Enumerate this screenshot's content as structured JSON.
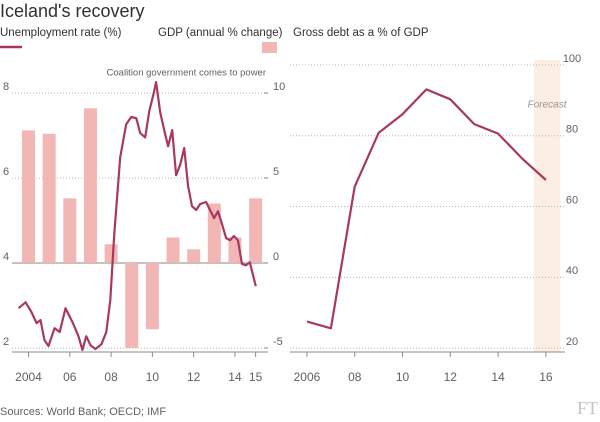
{
  "title": "Iceland's recovery",
  "source": "Sources: World Bank; OECD; IMF",
  "logo": "FT",
  "chart_data": [
    {
      "type": "bar-line",
      "annotation": "Coalition government comes to power",
      "xlim": [
        2003.2,
        2015.6
      ],
      "xticks": [
        2004,
        {
          "value": 2006,
          "label": "06"
        },
        {
          "value": 2008,
          "label": "08"
        },
        {
          "value": 2010,
          "label": "10"
        },
        {
          "value": 2012,
          "label": "12"
        },
        {
          "value": 2014,
          "label": "14"
        },
        {
          "value": 2015,
          "label": "15"
        }
      ],
      "ylim": [
        1.91,
        8.78
      ],
      "yticks": [
        2,
        4,
        6,
        8
      ],
      "y2lim": [
        -5.24,
        11.94
      ],
      "y2ticks": [
        -5,
        0,
        5,
        10
      ],
      "grid": true,
      "series": [
        {
          "name": "Unemployment rate (%)",
          "type": "line",
          "color": "#a8385f",
          "x": [
            2003.52,
            2003.86,
            2004.14,
            2004.39,
            2004.58,
            2004.77,
            2004.97,
            2005.26,
            2005.51,
            2005.79,
            2006.13,
            2006.42,
            2006.61,
            2006.8,
            2007.0,
            2007.24,
            2007.53,
            2007.77,
            2007.96,
            2008.15,
            2008.44,
            2008.73,
            2008.98,
            2009.22,
            2009.41,
            2009.65,
            2009.85,
            2010.04,
            2010.18,
            2010.38,
            2010.57,
            2010.76,
            2010.96,
            2011.15,
            2011.34,
            2011.54,
            2011.73,
            2011.92,
            2012.12,
            2012.31,
            2012.6,
            2012.79,
            2012.99,
            2013.18,
            2013.37,
            2013.57,
            2013.76,
            2013.95,
            2014.14,
            2014.34,
            2014.53,
            2014.72,
            2015.01
          ],
          "values": [
            2.94,
            3.08,
            2.85,
            2.59,
            2.66,
            2.19,
            2.05,
            2.47,
            2.38,
            2.94,
            2.61,
            2.28,
            1.96,
            2.28,
            2.07,
            1.98,
            2.09,
            2.38,
            3.13,
            4.66,
            6.49,
            7.27,
            7.44,
            7.41,
            7.06,
            6.96,
            7.58,
            7.95,
            8.26,
            7.55,
            7.13,
            6.75,
            7.13,
            6.07,
            6.31,
            6.71,
            5.81,
            5.34,
            5.25,
            5.39,
            5.44,
            5.25,
            5.06,
            5.22,
            4.92,
            4.59,
            4.54,
            4.64,
            4.54,
            3.98,
            3.95,
            4.02,
            3.46
          ]
        },
        {
          "name": "GDP (annual % change)",
          "type": "bar",
          "axis": "y2",
          "color": "#f2b7b5",
          "x": [
            2004,
            2005,
            2006,
            2007,
            2008,
            2009,
            2010,
            2011,
            2012,
            2013,
            2014,
            2015
          ],
          "values": [
            7.8,
            7.6,
            3.8,
            9.1,
            1.1,
            -5.0,
            -3.9,
            1.5,
            0.8,
            3.5,
            1.5,
            3.8
          ]
        }
      ]
    },
    {
      "type": "line",
      "title": "Gross debt as a % of GDP",
      "color": "#a8385f",
      "x": [
        2006,
        2007,
        2008,
        2009,
        2010,
        2011,
        2012,
        2013,
        2014,
        2015,
        2016
      ],
      "values": [
        27.5,
        25.6,
        65.6,
        80.8,
        86.1,
        93.1,
        90.3,
        83.3,
        80.6,
        73.6,
        67.5
      ],
      "xlim": [
        2005.29,
        2016.8
      ],
      "xticks": [
        2006,
        {
          "value": 2008,
          "label": "08"
        },
        {
          "value": 2010,
          "label": "10"
        },
        {
          "value": 2012,
          "label": "12"
        },
        {
          "value": 2014,
          "label": "14"
        },
        {
          "value": 2016,
          "label": "16"
        }
      ],
      "ylim": [
        18.9,
        101.4
      ],
      "yticks": [
        20,
        40,
        60,
        80,
        100
      ],
      "grid": true,
      "forecast_label": "Forecast",
      "forecast_span": [
        2015.5,
        2016.6
      ]
    }
  ]
}
